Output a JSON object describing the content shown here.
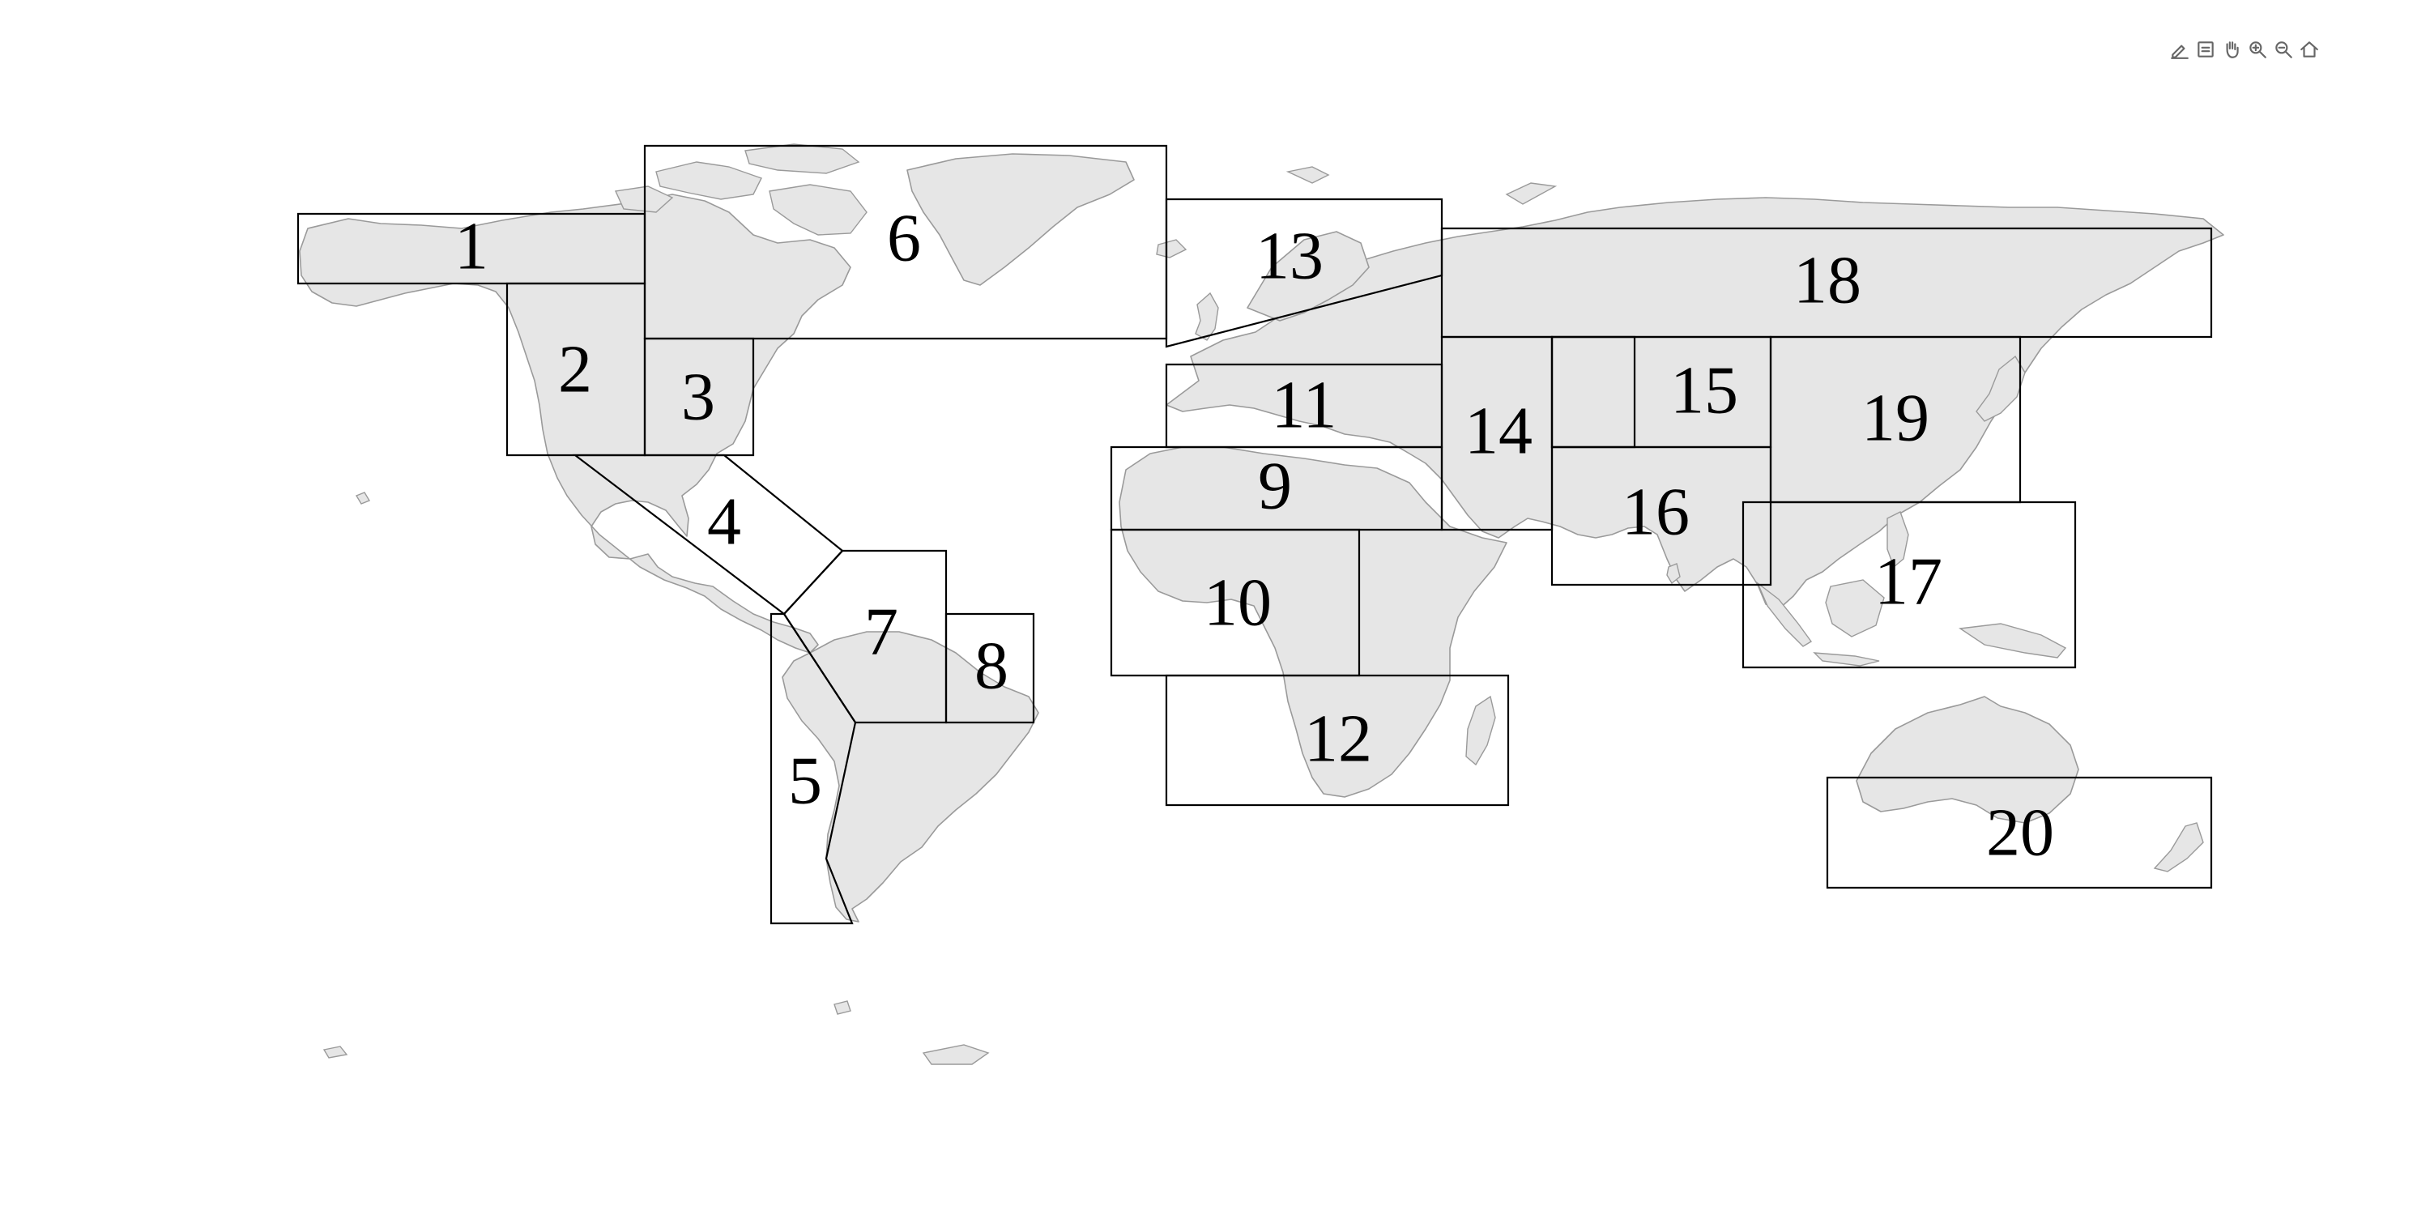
{
  "toolbar": {
    "tools": [
      {
        "icon": "pencil-icon",
        "name": "edit"
      },
      {
        "icon": "save-icon",
        "name": "save"
      },
      {
        "icon": "hand-icon",
        "name": "pan"
      },
      {
        "icon": "zoom-in-icon",
        "name": "zoom-in"
      },
      {
        "icon": "zoom-out-icon",
        "name": "zoom-out"
      },
      {
        "icon": "home-icon",
        "name": "reset"
      }
    ]
  },
  "regions": [
    {
      "id": "1",
      "label": "1"
    },
    {
      "id": "2",
      "label": "2"
    },
    {
      "id": "3",
      "label": "3"
    },
    {
      "id": "4",
      "label": "4"
    },
    {
      "id": "5",
      "label": "5"
    },
    {
      "id": "6",
      "label": "6"
    },
    {
      "id": "7",
      "label": "7"
    },
    {
      "id": "8",
      "label": "8"
    },
    {
      "id": "9",
      "label": "9"
    },
    {
      "id": "10",
      "label": "10"
    },
    {
      "id": "11",
      "label": "11"
    },
    {
      "id": "12",
      "label": "12"
    },
    {
      "id": "13",
      "label": "13"
    },
    {
      "id": "14",
      "label": "14"
    },
    {
      "id": "15",
      "label": "15"
    },
    {
      "id": "16",
      "label": "16"
    },
    {
      "id": "17",
      "label": "17"
    },
    {
      "id": "18",
      "label": "18"
    },
    {
      "id": "19",
      "label": "19"
    },
    {
      "id": "20",
      "label": "20"
    }
  ],
  "colors": {
    "land": "#e6e6e6",
    "coast": "#9a9a9a",
    "region_border": "#000000",
    "background": "#ffffff"
  }
}
